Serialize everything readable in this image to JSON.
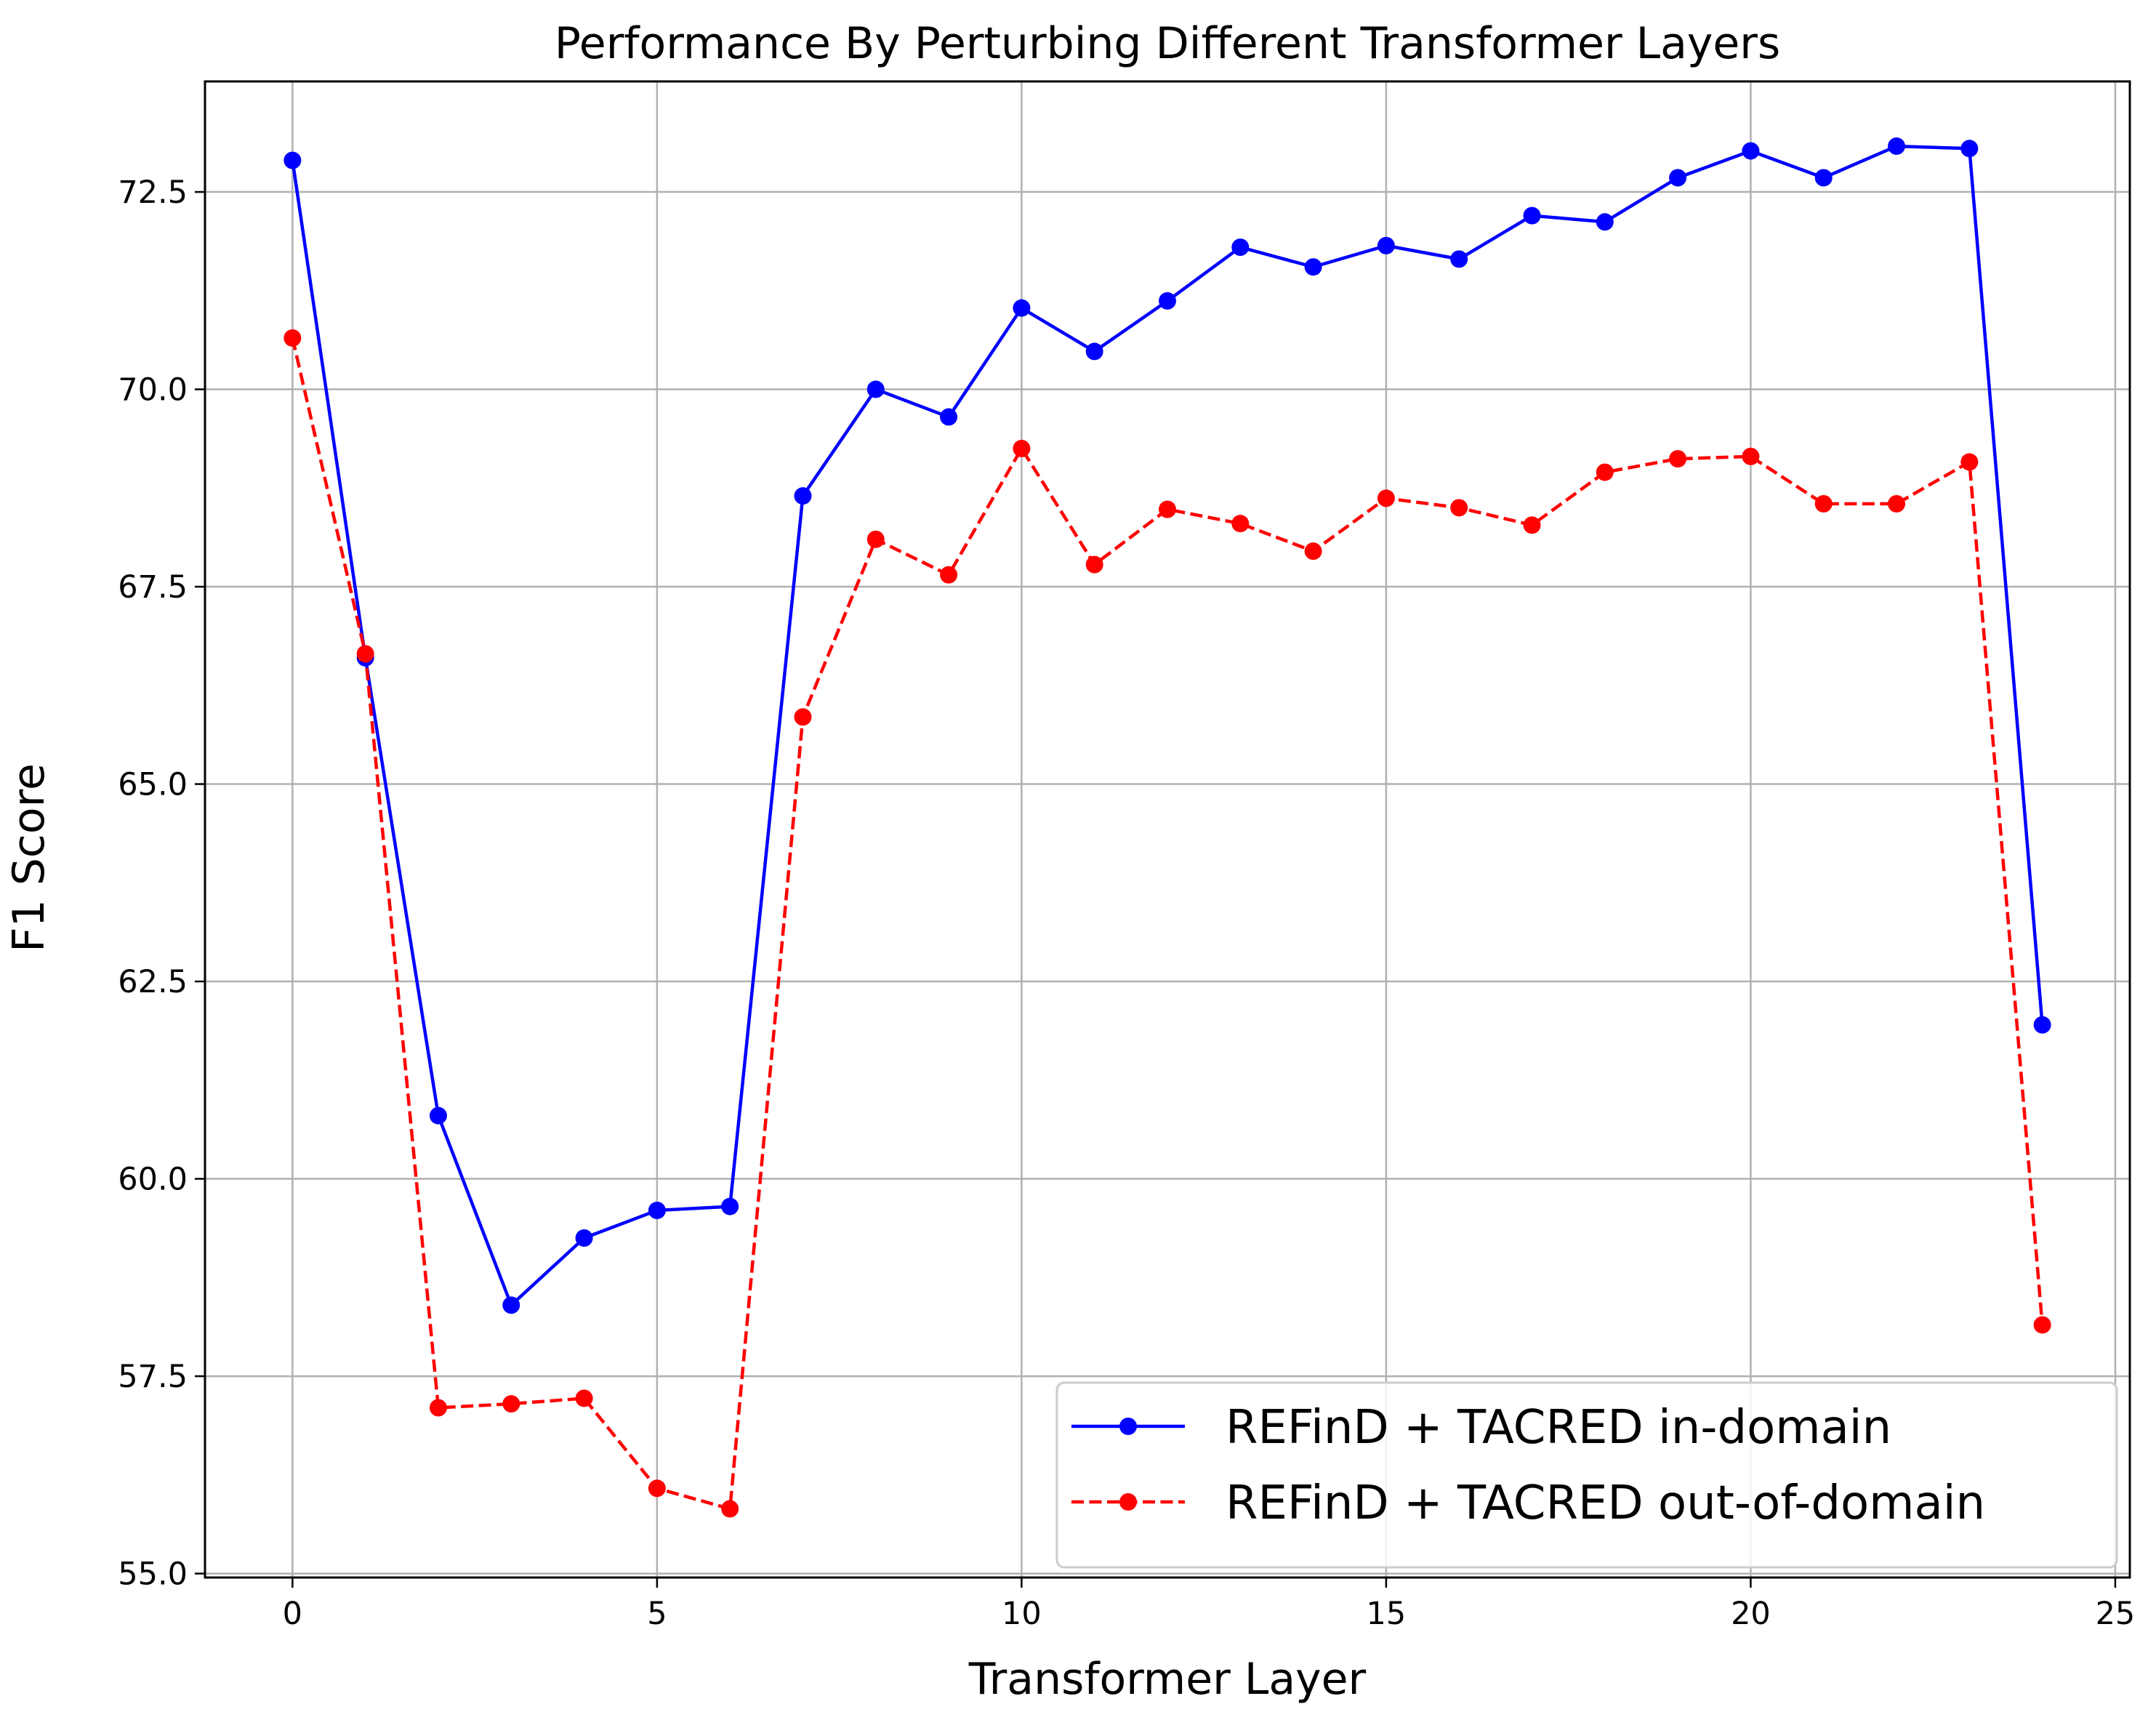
{
  "chart_data": {
    "type": "line",
    "title": "Performance By Perturbing Different Transformer Layers",
    "xlabel": "Transformer Layer",
    "ylabel": "F1 Score",
    "xlim": [
      -1.2,
      25.2
    ],
    "ylim": [
      54.95,
      73.9
    ],
    "xticks": [
      0,
      5,
      10,
      15,
      20,
      25
    ],
    "xtick_labels": [
      "0",
      "5",
      "10",
      "15",
      "20",
      "25"
    ],
    "yticks": [
      55.0,
      57.5,
      60.0,
      62.5,
      65.0,
      67.5,
      70.0,
      72.5
    ],
    "ytick_labels": [
      "55.0",
      "57.5",
      "60.0",
      "62.5",
      "65.0",
      "67.5",
      "70.0",
      "72.5"
    ],
    "grid": true,
    "legend_position": "bottom-right",
    "x": [
      0,
      1,
      2,
      3,
      4,
      5,
      6,
      7,
      8,
      9,
      10,
      11,
      12,
      13,
      14,
      15,
      16,
      17,
      18,
      19,
      20,
      21,
      22,
      23,
      24
    ],
    "series": [
      {
        "name": "REFinD + TACRED in-domain",
        "color": "#0000ff",
        "linestyle": "solid",
        "marker": "circle",
        "values": [
          72.9,
          66.6,
          60.8,
          58.4,
          59.25,
          59.6,
          59.65,
          68.65,
          70.0,
          69.65,
          71.03,
          70.48,
          71.12,
          71.8,
          71.55,
          71.82,
          71.65,
          72.2,
          72.12,
          72.68,
          73.02,
          72.68,
          73.08,
          73.05,
          61.95
        ]
      },
      {
        "name": "REFinD + TACRED out-of-domain",
        "color": "#ff0000",
        "linestyle": "dashed",
        "marker": "circle",
        "values": [
          70.65,
          66.65,
          57.1,
          57.15,
          57.22,
          56.08,
          55.82,
          65.85,
          68.1,
          67.65,
          69.25,
          67.78,
          68.48,
          68.3,
          67.95,
          68.62,
          68.5,
          68.28,
          68.95,
          69.12,
          69.15,
          68.55,
          68.55,
          69.08,
          58.15
        ]
      }
    ]
  }
}
